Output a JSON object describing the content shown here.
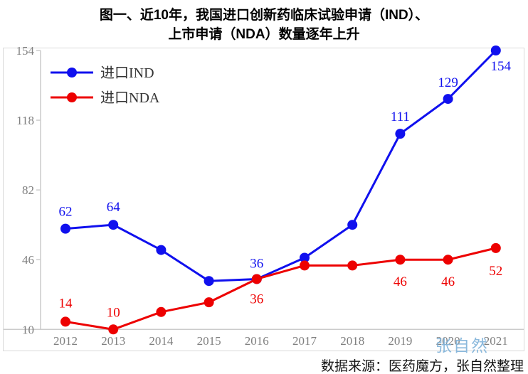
{
  "title": {
    "line1": "图一、近10年，我国进口创新药临床试验申请（IND）、",
    "line2": "上市申请（NDA）数量逐年上升"
  },
  "source": "数据来源：医药魔方，张自然整理",
  "watermark": "张自然",
  "colors": {
    "ind": "#1010ee",
    "nda": "#ed0000",
    "axis_line": "#cccccc",
    "frame_border": "#d9d9d9",
    "tick_label": "#808080",
    "legend_text": "#333333"
  },
  "chart_data": {
    "type": "line",
    "categories": [
      "2012",
      "2013",
      "2014",
      "2015",
      "2016",
      "2017",
      "2018",
      "2019",
      "2020",
      "2021"
    ],
    "y_ticks": [
      10,
      46,
      82,
      118,
      154
    ],
    "ylim": [
      10,
      154
    ],
    "grid": false,
    "legend_position": "top-left",
    "series": [
      {
        "name": "进口IND",
        "color": "#1010ee",
        "values": [
          62,
          64,
          51,
          35,
          36,
          47,
          64,
          111,
          129,
          154
        ],
        "labels": [
          {
            "text": "62",
            "dx": 0,
            "dy": -18
          },
          {
            "text": "64",
            "dx": 0,
            "dy": -19
          },
          null,
          null,
          {
            "text": "36",
            "dx": 0,
            "dy": -16
          },
          null,
          null,
          {
            "text": "111",
            "dx": 0,
            "dy": -18
          },
          {
            "text": "129",
            "dx": 0,
            "dy": -17
          },
          {
            "text": "154",
            "dx": 7,
            "dy": 28
          }
        ]
      },
      {
        "name": "进口NDA",
        "color": "#ed0000",
        "values": [
          14,
          10,
          19,
          24,
          36,
          43,
          43,
          46,
          46,
          52
        ],
        "labels": [
          {
            "text": "14",
            "dx": 0,
            "dy": -20
          },
          {
            "text": "10",
            "dx": 0,
            "dy": -18
          },
          null,
          null,
          {
            "text": "36",
            "dx": 0,
            "dy": 34
          },
          null,
          null,
          {
            "text": "46",
            "dx": 0,
            "dy": 37
          },
          {
            "text": "46",
            "dx": 0,
            "dy": 37
          },
          {
            "text": "52",
            "dx": 0,
            "dy": 38
          }
        ]
      }
    ]
  }
}
